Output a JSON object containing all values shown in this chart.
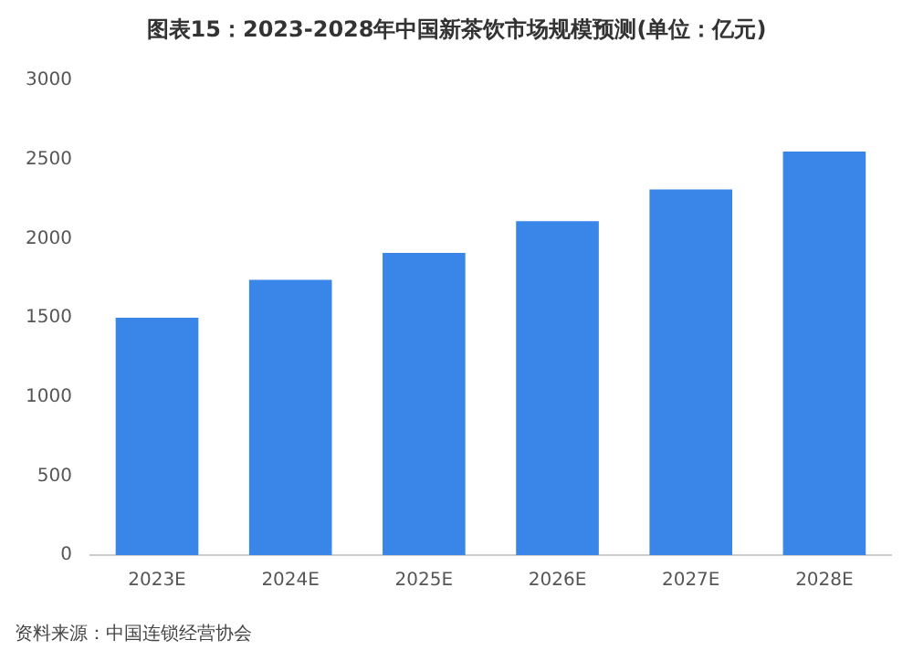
{
  "chart_data": {
    "type": "bar",
    "title": "图表15：2023-2028年中国新茶饮市场规模预测(单位：亿元)",
    "categories": [
      "2023E",
      "2024E",
      "2025E",
      "2026E",
      "2027E",
      "2028E"
    ],
    "values": [
      1500,
      1740,
      1910,
      2110,
      2310,
      2550
    ],
    "color": "#3a86e8",
    "ylim": [
      0,
      3000
    ],
    "yticks": [
      0,
      500,
      1000,
      1500,
      2000,
      2500,
      3000
    ],
    "grid": false,
    "legend": false,
    "annotations": [
      "资料来源：中国连锁经营协会"
    ]
  }
}
